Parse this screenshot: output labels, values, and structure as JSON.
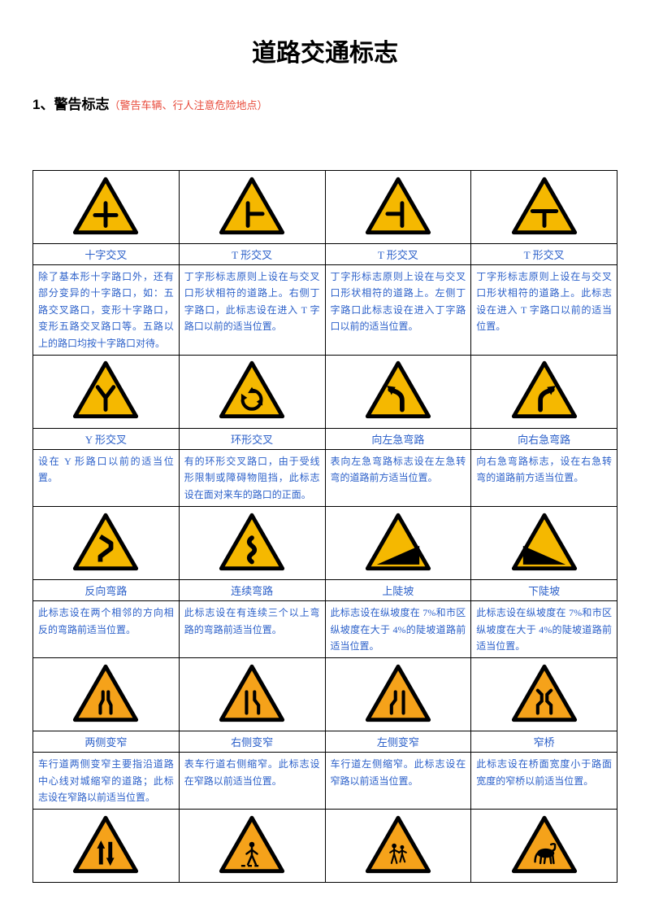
{
  "title": "道路交通标志",
  "section": "1、警告标志",
  "section_sub": "（警告车辆、行人注意危险地点）",
  "colors": {
    "triangle_fill": "#f5b800",
    "triangle_fill_alt": "#f5a21a",
    "triangle_border": "#000000",
    "text_blue": "#2a5fc9",
    "text_red": "#e84a3a"
  },
  "rows": [
    {
      "items": [
        {
          "icon": "cross",
          "label": "十字交叉",
          "desc": "除了基本形十字路口外，还有部分变异的十字路口，如：五路交叉路口，变形十字路口，变形五路交叉路口等。五路以上的路口均按十字路口对待。"
        },
        {
          "icon": "t-right",
          "label": "T 形交叉",
          "desc": "丁字形标志原则上设在与交叉口形状相符的道路上。右侧丁字路口，此标志设在进入 T 字路口以前的适当位置。"
        },
        {
          "icon": "t-left",
          "label": "T 形交叉",
          "desc": "丁字形标志原则上设在与交叉口形状相符的道路上。左侧丁字路口此标志设在进入丁字路口以前的适当位置。"
        },
        {
          "icon": "t-down",
          "label": "T 形交叉",
          "desc": "丁字形标志原则上设在与交叉口形状相符的道路上。此标志设在进入 T 字路口以前的适当位置。"
        }
      ]
    },
    {
      "items": [
        {
          "icon": "y-fork",
          "label": "Y 形交叉",
          "desc": "设在 Y 形路口以前的适当位置。"
        },
        {
          "icon": "roundabout",
          "label": "环形交叉",
          "desc": "有的环形交叉路口，由于受线形限制或障碍物阻挡，此标志设在面对来车的路口的正面。"
        },
        {
          "icon": "curve-left",
          "label": "向左急弯路",
          "desc": "表向左急弯路标志设在左急转弯的道路前方适当位置。"
        },
        {
          "icon": "curve-right",
          "label": "向右急弯路",
          "desc": "向右急弯路标志，设在右急转弯的道路前方适当位置。"
        }
      ]
    },
    {
      "items": [
        {
          "icon": "reverse-curve",
          "label": "反向弯路",
          "desc": "此标志设在两个相邻的方向相反的弯路前适当位置。"
        },
        {
          "icon": "winding",
          "label": "连续弯路",
          "desc": "此标志设在有连续三个以上弯路的弯路前适当位置。"
        },
        {
          "icon": "slope-up",
          "label": "上陡坡",
          "desc": "此标志设在纵坡度在 7%和市区纵坡度在大于 4%的陡坡道路前适当位置。"
        },
        {
          "icon": "slope-down",
          "label": "下陡坡",
          "desc": "此标志设在纵坡度在 7%和市区纵坡度在大于 4%的陡坡道路前适当位置。"
        }
      ]
    },
    {
      "items": [
        {
          "icon": "narrow-both",
          "label": "两侧变窄",
          "desc": "车行道两侧变窄主要指沿道路中心线对城缩窄的道路；此标志设在窄路以前适当位置。"
        },
        {
          "icon": "narrow-right",
          "label": "右侧变窄",
          "desc": "表车行道右侧缩窄。此标志设在窄路以前适当位置。"
        },
        {
          "icon": "narrow-left",
          "label": "左侧变窄",
          "desc": "车行道左侧缩窄。此标志设在窄路以前适当位置。"
        },
        {
          "icon": "narrow-bridge",
          "label": "窄桥",
          "desc": "此标志设在桥面宽度小于路面宽度的窄桥以前适当位置。"
        }
      ]
    },
    {
      "items": [
        {
          "icon": "two-way",
          "label": "",
          "desc": ""
        },
        {
          "icon": "pedestrian",
          "label": "",
          "desc": ""
        },
        {
          "icon": "children",
          "label": "",
          "desc": ""
        },
        {
          "icon": "cattle",
          "label": "",
          "desc": ""
        }
      ]
    }
  ]
}
